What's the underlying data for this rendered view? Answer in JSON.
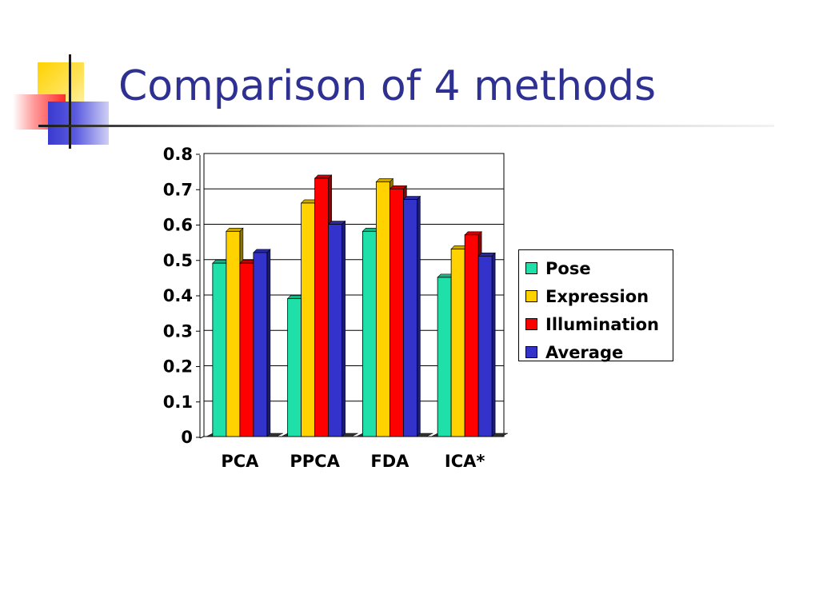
{
  "slide": {
    "title": "Comparison of 4 methods"
  },
  "chart_data": {
    "type": "bar",
    "title": "",
    "xlabel": "",
    "ylabel": "",
    "ylim": [
      0,
      0.8
    ],
    "yticks": [
      "0",
      "0.1",
      "0.2",
      "0.3",
      "0.4",
      "0.5",
      "0.6",
      "0.7",
      "0.8"
    ],
    "grid": true,
    "legend_position": "right",
    "categories": [
      "PCA",
      "PPCA",
      "FDA",
      "ICA*"
    ],
    "series": [
      {
        "name": "Pose",
        "color": "#1fe0a8",
        "values": [
          0.49,
          0.39,
          0.58,
          0.45
        ]
      },
      {
        "name": "Expression",
        "color": "#ffd200",
        "values": [
          0.58,
          0.66,
          0.72,
          0.53
        ]
      },
      {
        "name": "Illumination",
        "color": "#ff0000",
        "values": [
          0.49,
          0.73,
          0.7,
          0.57
        ]
      },
      {
        "name": "Average",
        "color": "#3333cc",
        "values": [
          0.52,
          0.6,
          0.67,
          0.51
        ]
      }
    ]
  }
}
